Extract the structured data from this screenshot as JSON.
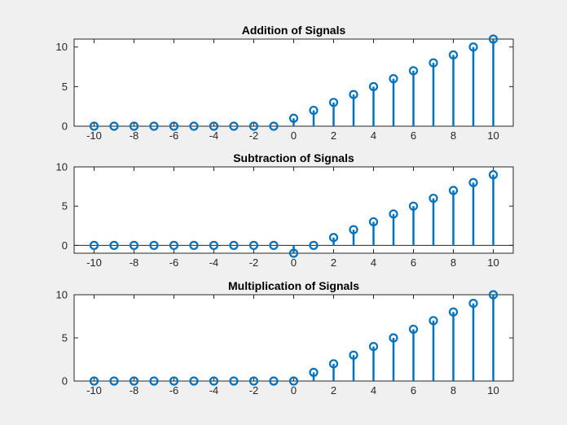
{
  "chart_data": [
    {
      "type": "stem",
      "title": "Addition of Signals",
      "xlabel": "",
      "ylabel": "",
      "xlim": [
        -11,
        11
      ],
      "ylim": [
        0,
        11
      ],
      "xticks": [
        -10,
        -8,
        -6,
        -4,
        -2,
        0,
        2,
        4,
        6,
        8,
        10
      ],
      "yticks": [
        0,
        5,
        10
      ],
      "x": [
        -10,
        -9,
        -8,
        -7,
        -6,
        -5,
        -4,
        -3,
        -2,
        -1,
        0,
        1,
        2,
        3,
        4,
        5,
        6,
        7,
        8,
        9,
        10
      ],
      "y": [
        0,
        0,
        0,
        0,
        0,
        0,
        0,
        0,
        0,
        0,
        1,
        2,
        3,
        4,
        5,
        6,
        7,
        8,
        9,
        10,
        11
      ],
      "color": "#0072bd"
    },
    {
      "type": "stem",
      "title": "Subtraction of Signals",
      "xlabel": "",
      "ylabel": "",
      "xlim": [
        -11,
        11
      ],
      "ylim": [
        -1,
        10
      ],
      "xticks": [
        -10,
        -8,
        -6,
        -4,
        -2,
        0,
        2,
        4,
        6,
        8,
        10
      ],
      "yticks": [
        0,
        5,
        10
      ],
      "x": [
        -10,
        -9,
        -8,
        -7,
        -6,
        -5,
        -4,
        -3,
        -2,
        -1,
        0,
        1,
        2,
        3,
        4,
        5,
        6,
        7,
        8,
        9,
        10
      ],
      "y": [
        0,
        0,
        0,
        0,
        0,
        0,
        0,
        0,
        0,
        0,
        -1,
        0,
        1,
        2,
        3,
        4,
        5,
        6,
        7,
        8,
        9
      ],
      "color": "#0072bd"
    },
    {
      "type": "stem",
      "title": "Multiplication of Signals",
      "xlabel": "",
      "ylabel": "",
      "xlim": [
        -11,
        11
      ],
      "ylim": [
        0,
        10
      ],
      "xticks": [
        -10,
        -8,
        -6,
        -4,
        -2,
        0,
        2,
        4,
        6,
        8,
        10
      ],
      "yticks": [
        0,
        5,
        10
      ],
      "x": [
        -10,
        -9,
        -8,
        -7,
        -6,
        -5,
        -4,
        -3,
        -2,
        -1,
        0,
        1,
        2,
        3,
        4,
        5,
        6,
        7,
        8,
        9,
        10
      ],
      "y": [
        0,
        0,
        0,
        0,
        0,
        0,
        0,
        0,
        0,
        0,
        0,
        1,
        2,
        3,
        4,
        5,
        6,
        7,
        8,
        9,
        10
      ],
      "color": "#0072bd"
    }
  ]
}
